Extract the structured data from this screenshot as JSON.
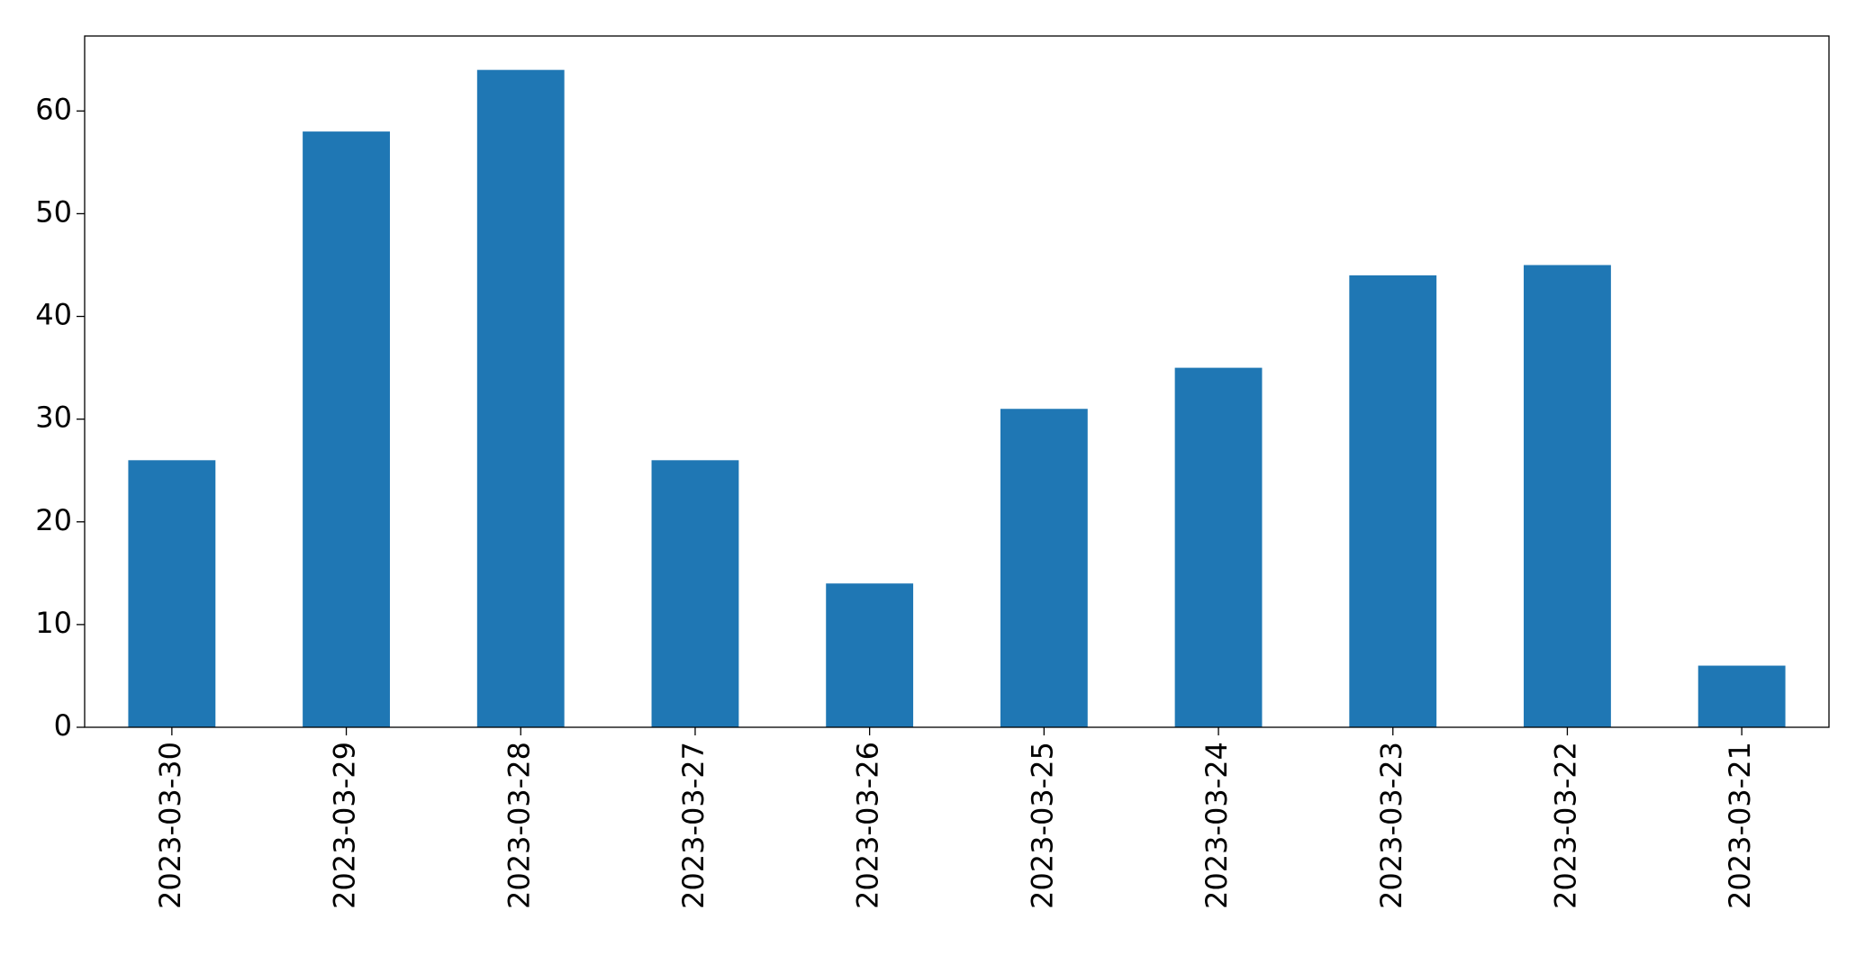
{
  "chart_data": {
    "type": "bar",
    "categories": [
      "2023-03-30",
      "2023-03-29",
      "2023-03-28",
      "2023-03-27",
      "2023-03-26",
      "2023-03-25",
      "2023-03-24",
      "2023-03-23",
      "2023-03-22",
      "2023-03-21"
    ],
    "values": [
      26,
      58,
      64,
      26,
      14,
      31,
      35,
      44,
      45,
      6
    ],
    "color": "#1f77b4",
    "ylim": [
      0,
      67.3
    ],
    "yticks": [
      0,
      10,
      20,
      30,
      40,
      50,
      60
    ],
    "grid": false
  }
}
